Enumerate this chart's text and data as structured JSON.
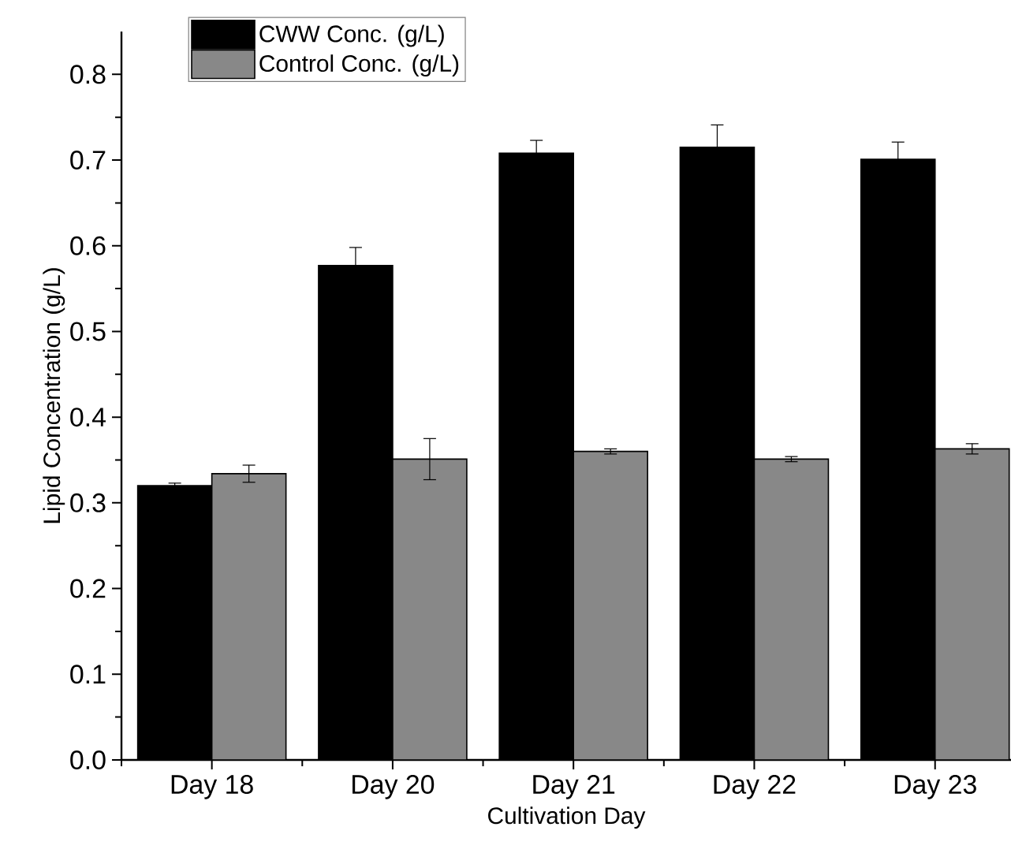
{
  "chart_data": {
    "type": "bar",
    "xlabel": "Cultivation Day",
    "ylabel": "Lipid Concentration (g/L)",
    "categories": [
      "Day 18",
      "Day 20",
      "Day 21",
      "Day 22",
      "Day 23"
    ],
    "series": [
      {
        "name": "CWW Conc. (g/L)",
        "color": "#000000",
        "values": [
          0.32,
          0.577,
          0.708,
          0.715,
          0.701
        ],
        "errors": [
          0.003,
          0.021,
          0.015,
          0.026,
          0.02
        ]
      },
      {
        "name": "Control Conc. (g/L)",
        "color": "#888888",
        "values": [
          0.334,
          0.351,
          0.36,
          0.351,
          0.363
        ],
        "errors": [
          0.01,
          0.024,
          0.003,
          0.003,
          0.006
        ]
      }
    ],
    "ylim": [
      0,
      0.85
    ],
    "yticks": [
      {
        "value": 0,
        "label": "0.0"
      },
      0.1,
      0.2,
      0.3,
      0.4,
      0.5,
      0.6,
      0.7,
      0.8
    ],
    "legend": "top left",
    "grid": false
  }
}
